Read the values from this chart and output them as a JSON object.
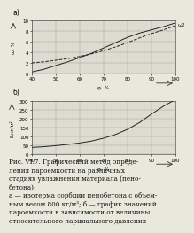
{
  "subplot_a": {
    "label": "а)",
    "xlabel": "φ, %",
    "ylabel": "ω, %",
    "xlim": [
      40,
      100
    ],
    "ylim": [
      0,
      10
    ],
    "xticks": [
      40,
      50,
      60,
      70,
      80,
      90,
      100
    ],
    "yticks": [
      0,
      2,
      4,
      6,
      8,
      10
    ],
    "curve1_x": [
      40,
      45,
      50,
      55,
      60,
      65,
      70,
      75,
      80,
      85,
      90,
      95,
      100
    ],
    "curve1_y": [
      0.3,
      0.8,
      1.5,
      2.2,
      3.0,
      3.8,
      4.8,
      5.8,
      6.8,
      7.6,
      8.2,
      8.8,
      9.5
    ],
    "curve2_x": [
      40,
      45,
      50,
      55,
      60,
      65,
      70,
      75,
      80,
      85,
      90,
      95,
      100
    ],
    "curve2_y": [
      2.0,
      2.2,
      2.5,
      2.8,
      3.2,
      3.7,
      4.3,
      5.0,
      5.8,
      6.7,
      7.5,
      8.2,
      9.0
    ],
    "curve_color": "#222222",
    "label_curve2": "ω2"
  },
  "subplot_b": {
    "label": "б)",
    "xlabel": "φ, %",
    "ylabel": "E,нг/м²",
    "xlim": [
      40,
      100
    ],
    "ylim": [
      0,
      300
    ],
    "xticks": [
      40,
      50,
      60,
      70,
      80,
      90,
      100
    ],
    "yticks": [
      0,
      50,
      100,
      150,
      200,
      250,
      300
    ],
    "curve_x": [
      40,
      45,
      50,
      55,
      60,
      65,
      70,
      75,
      80,
      85,
      90,
      95,
      100
    ],
    "curve_y": [
      40,
      44,
      50,
      57,
      65,
      76,
      92,
      113,
      142,
      180,
      228,
      272,
      310
    ],
    "curve_color": "#222222"
  },
  "bg_color": "#e8e8dc",
  "plot_bg": "#dcdcd0",
  "grid_color": "#999999",
  "text_color": "#111111",
  "caption_lines": [
    "Рис. VI.7. Графический метод опреде-",
    "ления пароемкости на различных",
    "стадиях увлажнения материала (пено-",
    "бетона):",
    "а — изотерма сорбции пенобетона с объем-",
    "ным весом 800 кг/м³; б — график значений",
    "пароемкости в зависимости от величины",
    "относительного парциального давления"
  ],
  "caption_fontsize": 5.2
}
